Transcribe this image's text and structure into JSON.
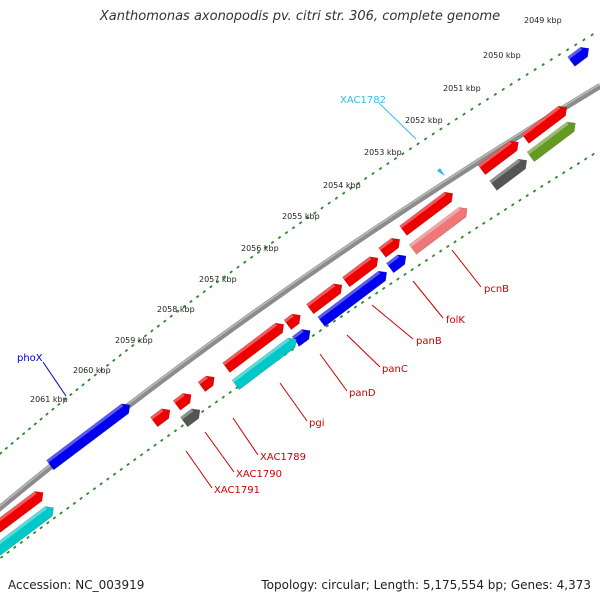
{
  "title": "Xanthomonas axonopodis pv. citri str. 306, complete genome",
  "accession": "Accession: NC_003919",
  "summary": "Topology: circular; Length: 5,175,554 bp; Genes: 4,373",
  "scale_labels": [
    "2049 kbp",
    "2050 kbp",
    "2051 kbp",
    "2052 kbp",
    "2053 kbp",
    "2054 kbp",
    "2055 kbp",
    "2056 kbp",
    "2057 kbp",
    "2058 kbp",
    "2059 kbp",
    "2060 kbp",
    "2061 kbp"
  ],
  "gene_labels": [
    {
      "name": "XAC1782",
      "color": "#33bbee"
    },
    {
      "name": "phoX",
      "color": "#0000cc"
    },
    {
      "name": "pcnB",
      "color": "#cc0000"
    },
    {
      "name": "folK",
      "color": "#cc0000"
    },
    {
      "name": "panB",
      "color": "#cc0000"
    },
    {
      "name": "panC",
      "color": "#cc0000"
    },
    {
      "name": "panD",
      "color": "#cc0000"
    },
    {
      "name": "pgi",
      "color": "#cc0000"
    },
    {
      "name": "XAC1789",
      "color": "#cc0000"
    },
    {
      "name": "XAC1790",
      "color": "#cc0000"
    },
    {
      "name": "XAC1791",
      "color": "#cc0000"
    }
  ],
  "colors": {
    "red": "#ee0000",
    "blue": "#0000ee",
    "cyan": "#00c8c8",
    "gray": "#555555",
    "olive": "#669922",
    "pink": "#ee7777",
    "backbone": "#888888",
    "ticks": "#2a8a2a"
  }
}
